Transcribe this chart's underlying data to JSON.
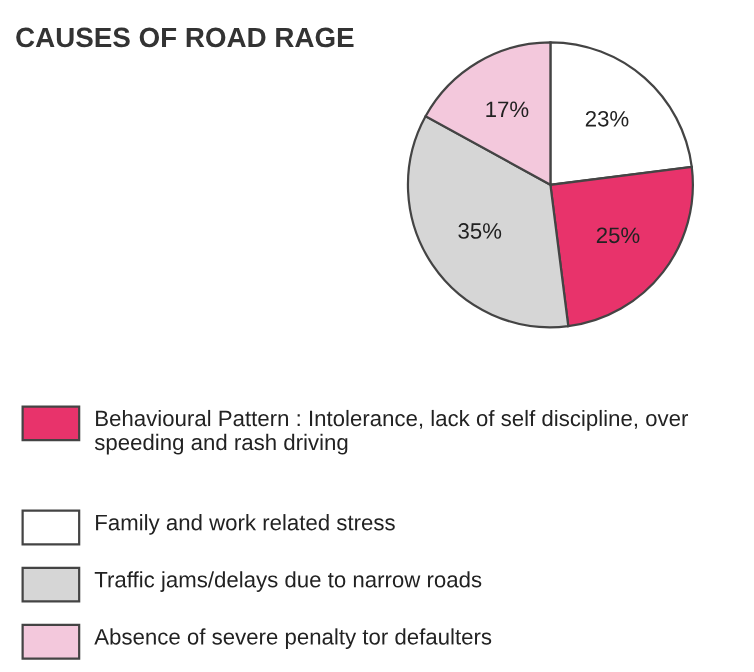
{
  "chart_data": {
    "type": "pie",
    "title": "CAUSES OF ROAD RAGE",
    "categories": [
      "Behavioural Pattern : Intolerance, lack of self discipline, over speeding and rash driving",
      "Family and work related stress",
      "Traffic jams/delays due to narrow roads",
      "Absence of severe penalty tor defaulters"
    ],
    "values": [
      25,
      23,
      35,
      17
    ],
    "colors": [
      "#e8336b",
      "#ffffff",
      "#d6d6d6",
      "#f3c8dc"
    ],
    "value_labels": [
      "25%",
      "23%",
      "35%",
      "17%"
    ],
    "legend": "bottom"
  }
}
